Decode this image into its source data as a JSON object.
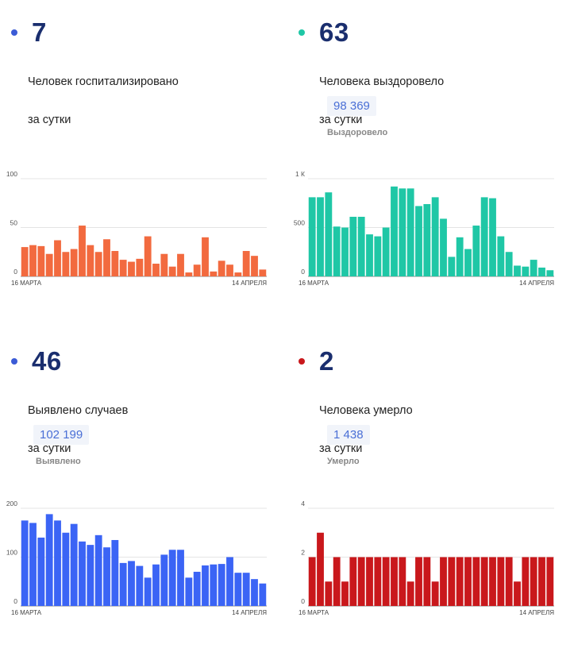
{
  "panels": [
    {
      "value": "7",
      "dot_color": "#3b5bd6",
      "label_line1": "Человек госпитализировано",
      "label_line2": "за сутки",
      "total": "",
      "total_label": ""
    },
    {
      "value": "63",
      "dot_color": "#1fc7a6",
      "label_line1": "Человека выздоровело",
      "label_line2": "за сутки",
      "total": "98 369",
      "total_label": "Выздоровело"
    },
    {
      "value": "46",
      "dot_color": "#3b5bd6",
      "label_line1": "Выявлено случаев",
      "label_line2": "за сутки",
      "total": "102 199",
      "total_label": "Выявлено"
    },
    {
      "value": "2",
      "dot_color": "#c9181c",
      "label_line1": "Человека умерло",
      "label_line2": "за сутки",
      "total": "1 438",
      "total_label": "Умерло"
    }
  ],
  "chart_data": [
    {
      "type": "bar",
      "color": "#f26a3f",
      "x_start_label": "16 МАРТА",
      "x_end_label": "14 АПРЕЛЯ",
      "yticks": [
        "0",
        "50",
        "100"
      ],
      "ylim": [
        0,
        100
      ],
      "values": [
        30,
        32,
        31,
        23,
        37,
        25,
        28,
        52,
        32,
        25,
        38,
        26,
        17,
        15,
        18,
        41,
        13,
        23,
        10,
        23,
        4,
        12,
        40,
        5,
        16,
        12,
        4,
        26,
        21,
        7
      ]
    },
    {
      "type": "bar",
      "color": "#1fc7a6",
      "x_start_label": "16 МАРТА",
      "x_end_label": "14 АПРЕЛЯ",
      "yticks": [
        "0",
        "500",
        "1 К"
      ],
      "ylim": [
        0,
        1000
      ],
      "values": [
        810,
        810,
        860,
        510,
        500,
        610,
        610,
        430,
        410,
        500,
        920,
        900,
        900,
        720,
        740,
        810,
        590,
        200,
        400,
        280,
        520,
        810,
        800,
        410,
        250,
        110,
        100,
        170,
        90,
        63
      ]
    },
    {
      "type": "bar",
      "color": "#3b64f5",
      "x_start_label": "16 МАРТА",
      "x_end_label": "14 АПРЕЛЯ",
      "yticks": [
        "0",
        "100",
        "200"
      ],
      "ylim": [
        0,
        200
      ],
      "values": [
        175,
        170,
        140,
        188,
        175,
        150,
        168,
        132,
        125,
        145,
        120,
        135,
        88,
        92,
        82,
        58,
        85,
        105,
        115,
        115,
        58,
        70,
        83,
        85,
        86,
        100,
        68,
        68,
        55,
        46
      ]
    },
    {
      "type": "bar",
      "color": "#c9181c",
      "x_start_label": "16 МАРТА",
      "x_end_label": "14 АПРЕЛЯ",
      "yticks": [
        "0",
        "2",
        "4"
      ],
      "ylim": [
        0,
        4
      ],
      "values": [
        2,
        3,
        1,
        2,
        1,
        2,
        2,
        2,
        2,
        2,
        2,
        2,
        1,
        2,
        2,
        1,
        2,
        2,
        2,
        2,
        2,
        2,
        2,
        2,
        2,
        1,
        2,
        2,
        2,
        2
      ]
    }
  ]
}
